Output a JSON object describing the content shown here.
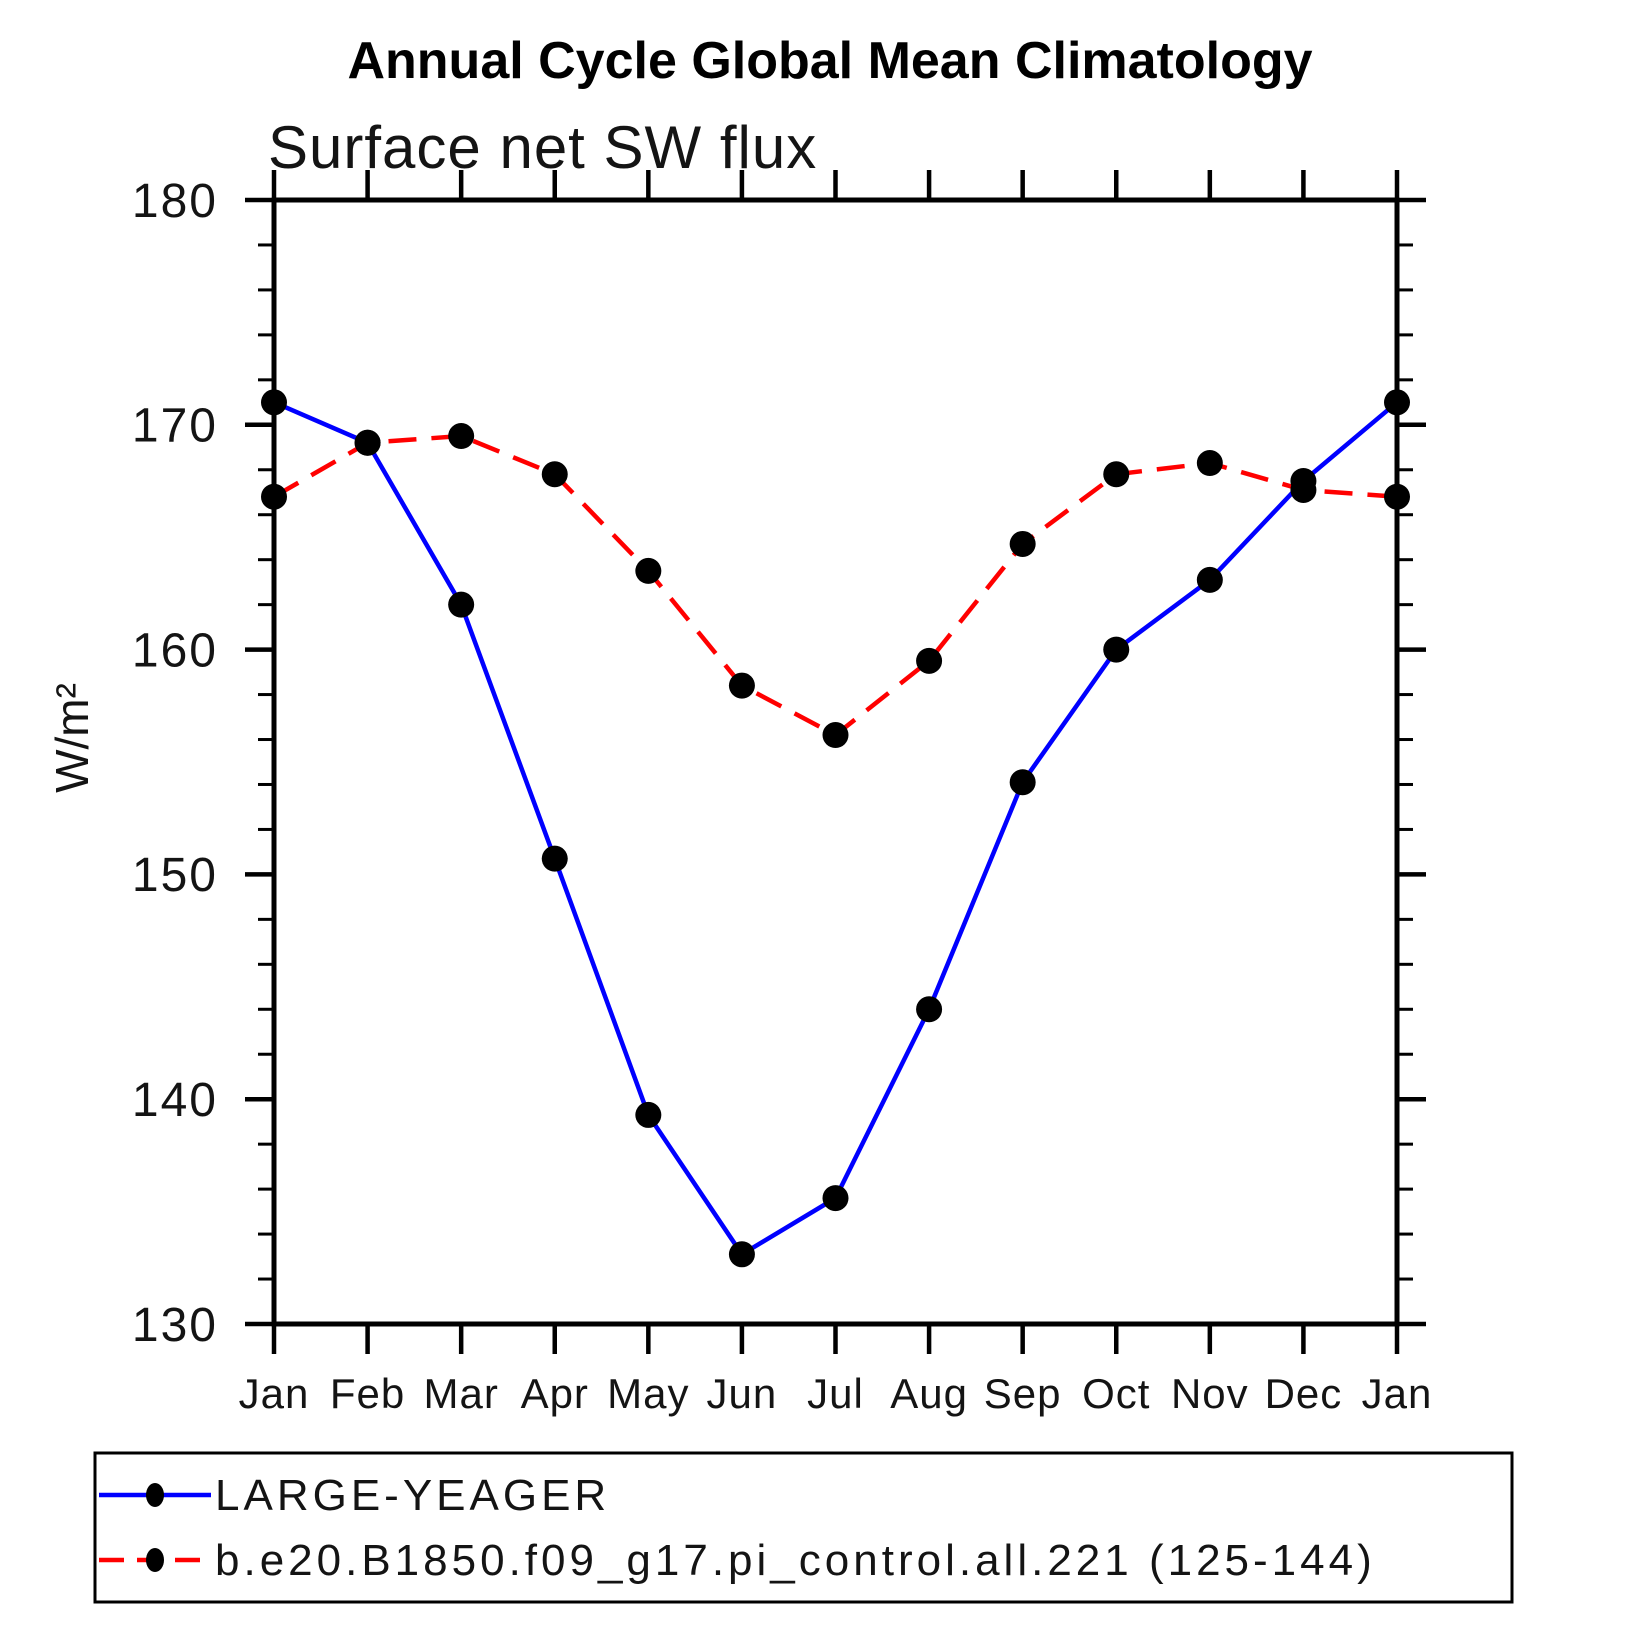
{
  "chart_data": {
    "type": "line",
    "title": "Annual Cycle Global Mean Climatology",
    "subtitle": "Surface net SW flux",
    "ylabel": "W/m²",
    "xlabel": "",
    "x_categories": [
      "Jan",
      "Feb",
      "Mar",
      "Apr",
      "May",
      "Jun",
      "Jul",
      "Aug",
      "Sep",
      "Oct",
      "Nov",
      "Dec",
      "Jan"
    ],
    "ylim": [
      130,
      180
    ],
    "yticks": [
      130,
      140,
      150,
      160,
      170,
      180
    ],
    "ytick_major_step": 10,
    "ytick_minor_step": 2,
    "grid": "off",
    "legend_position": "bottom-left-box",
    "axis_color": "#000000",
    "marker_color": "#000000",
    "series": [
      {
        "name": "LARGE-YEAGER",
        "color": "#0000ff",
        "style": "solid",
        "marker": "filled-circle",
        "values": [
          171.0,
          169.2,
          162.0,
          150.7,
          139.3,
          133.1,
          135.6,
          144.0,
          154.1,
          160.0,
          163.1,
          167.5,
          171.0
        ]
      },
      {
        "name": "b.e20.B1850.f09_g17.pi_control.all.221 (125-144)",
        "color": "#ff0000",
        "style": "dashed",
        "marker": "filled-circle",
        "values": [
          166.8,
          169.2,
          169.5,
          167.8,
          163.5,
          158.4,
          156.2,
          159.5,
          164.7,
          167.8,
          168.3,
          167.1,
          166.8
        ]
      }
    ]
  }
}
